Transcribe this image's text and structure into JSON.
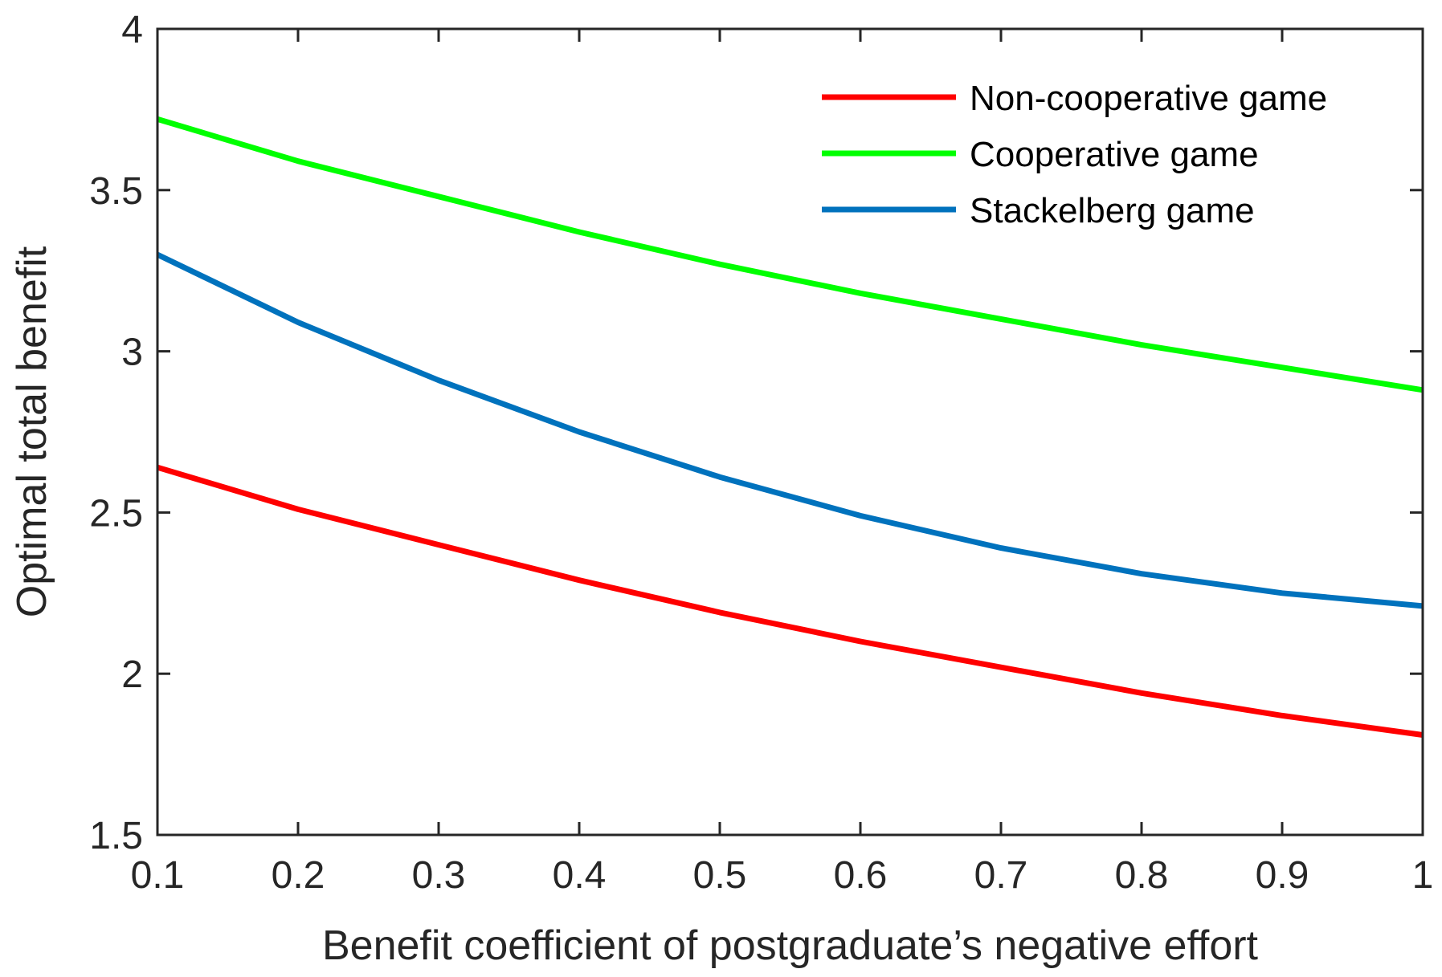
{
  "chart_data": {
    "type": "line",
    "title": "",
    "xlabel": "Benefit coefficient of postgraduate’s negative effort",
    "ylabel": "Optimal total benefit",
    "xlim": [
      0.1,
      1
    ],
    "ylim": [
      1.5,
      4
    ],
    "xticks": [
      0.1,
      0.2,
      0.3,
      0.4,
      0.5,
      0.6,
      0.7,
      0.8,
      0.9,
      1
    ],
    "yticks": [
      1.5,
      2,
      2.5,
      3,
      3.5,
      4
    ],
    "xtick_labels": [
      "0.1",
      "0.2",
      "0.3",
      "0.4",
      "0.5",
      "0.6",
      "0.7",
      "0.8",
      "0.9",
      "1"
    ],
    "ytick_labels": [
      "1.5",
      "2",
      "2.5",
      "3",
      "3.5",
      "4"
    ],
    "grid": false,
    "legend_position": "top-right",
    "x": [
      0.1,
      0.2,
      0.3,
      0.4,
      0.5,
      0.6,
      0.7,
      0.8,
      0.9,
      1.0
    ],
    "series": [
      {
        "name": "Non-cooperative game",
        "color": "#ff0000",
        "values": [
          2.64,
          2.51,
          2.4,
          2.29,
          2.19,
          2.1,
          2.02,
          1.94,
          1.87,
          1.81
        ]
      },
      {
        "name": "Cooperative game",
        "color": "#00ff00",
        "values": [
          3.72,
          3.59,
          3.48,
          3.37,
          3.27,
          3.18,
          3.1,
          3.02,
          2.95,
          2.88
        ]
      },
      {
        "name": "Stackelberg game",
        "color": "#0072bd",
        "values": [
          3.3,
          3.09,
          2.91,
          2.75,
          2.61,
          2.49,
          2.39,
          2.31,
          2.25,
          2.21
        ]
      }
    ]
  }
}
